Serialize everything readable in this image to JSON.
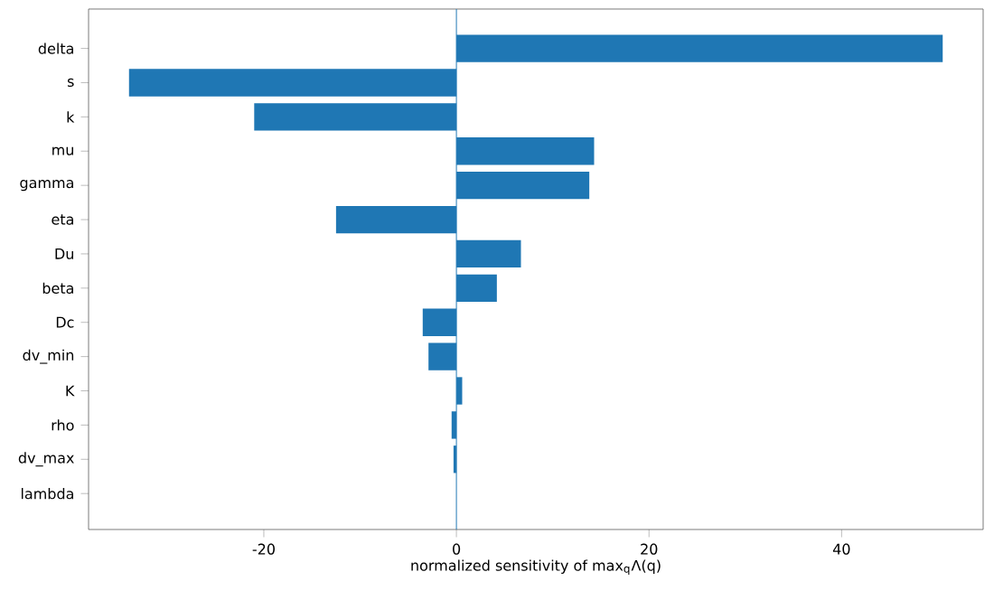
{
  "chart_data": {
    "type": "bar",
    "orientation": "horizontal",
    "xlabel": "normalized sensitivity of max$_{q}$Λ(q)",
    "categories": [
      "delta",
      "s",
      "k",
      "mu",
      "gamma",
      "eta",
      "Du",
      "beta",
      "Dc",
      "dv_min",
      "K",
      "rho",
      "dv_max",
      "lambda"
    ],
    "values": [
      50.5,
      -34.0,
      -21.0,
      14.3,
      13.8,
      -12.5,
      6.7,
      4.2,
      -3.5,
      -2.9,
      0.6,
      -0.5,
      -0.3,
      0
    ],
    "color": "#1f77b4",
    "xlim": [
      -38.2,
      54.7
    ],
    "xticks": [
      -20,
      0,
      20,
      40
    ],
    "ref_lines": [
      {
        "axis": "x",
        "value": 0,
        "color": "#1f77b4"
      }
    ]
  }
}
